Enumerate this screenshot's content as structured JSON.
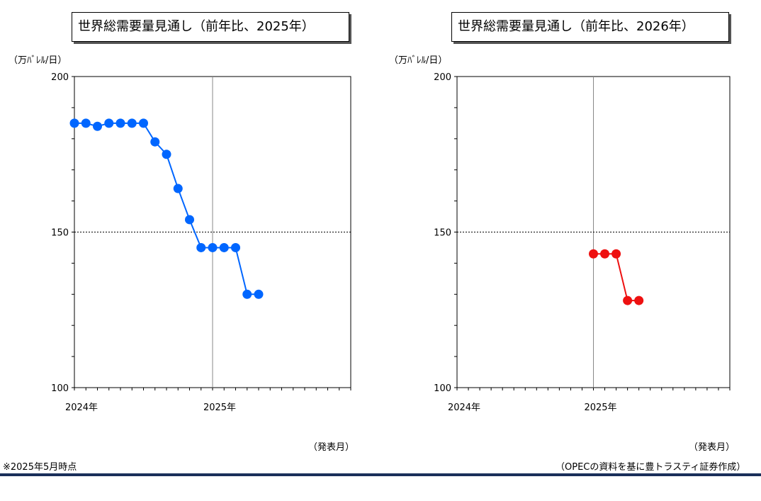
{
  "chart_data": [
    {
      "type": "line",
      "title": "世界総需要量見通し（前年比、2025年）",
      "ylabel": "（万ﾊﾞﾚﾙ/日）",
      "xlabel": "（発表月）",
      "ylim": [
        100,
        200
      ],
      "yticks": [
        "100",
        "150",
        "200"
      ],
      "x_range_months": [
        0,
        24
      ],
      "xticks": [
        {
          "label": "2024年",
          "month": 0
        },
        {
          "label": "2025年",
          "month": 12
        }
      ],
      "reference_line": 150,
      "vline_month": 12,
      "color": "#0066ff",
      "points": [
        {
          "month": 0,
          "value": 185
        },
        {
          "month": 1,
          "value": 185
        },
        {
          "month": 2,
          "value": 184
        },
        {
          "month": 3,
          "value": 185
        },
        {
          "month": 4,
          "value": 185
        },
        {
          "month": 5,
          "value": 185
        },
        {
          "month": 6,
          "value": 185
        },
        {
          "month": 7,
          "value": 179
        },
        {
          "month": 8,
          "value": 175
        },
        {
          "month": 9,
          "value": 164
        },
        {
          "month": 10,
          "value": 154
        },
        {
          "month": 11,
          "value": 145
        },
        {
          "month": 12,
          "value": 145
        },
        {
          "month": 13,
          "value": 145
        },
        {
          "month": 14,
          "value": 145
        },
        {
          "month": 15,
          "value": 130
        },
        {
          "month": 16,
          "value": 130
        }
      ]
    },
    {
      "type": "line",
      "title": "世界総需要量見通し（前年比、2026年）",
      "ylabel": "（万ﾊﾞﾚﾙ/日）",
      "xlabel": "（発表月）",
      "ylim": [
        100,
        200
      ],
      "yticks": [
        "100",
        "150",
        "200"
      ],
      "x_range_months": [
        0,
        24
      ],
      "xticks": [
        {
          "label": "2024年",
          "month": 0
        },
        {
          "label": "2025年",
          "month": 12
        }
      ],
      "reference_line": 150,
      "vline_month": 12,
      "color": "#ee1111",
      "points": [
        {
          "month": 12,
          "value": 143
        },
        {
          "month": 13,
          "value": 143
        },
        {
          "month": 14,
          "value": 143
        },
        {
          "month": 15,
          "value": 128
        },
        {
          "month": 16,
          "value": 128
        }
      ]
    }
  ],
  "footnote": "※2025年5月時点",
  "source": "（OPECの資料を基に豊トラスティ証券作成）"
}
